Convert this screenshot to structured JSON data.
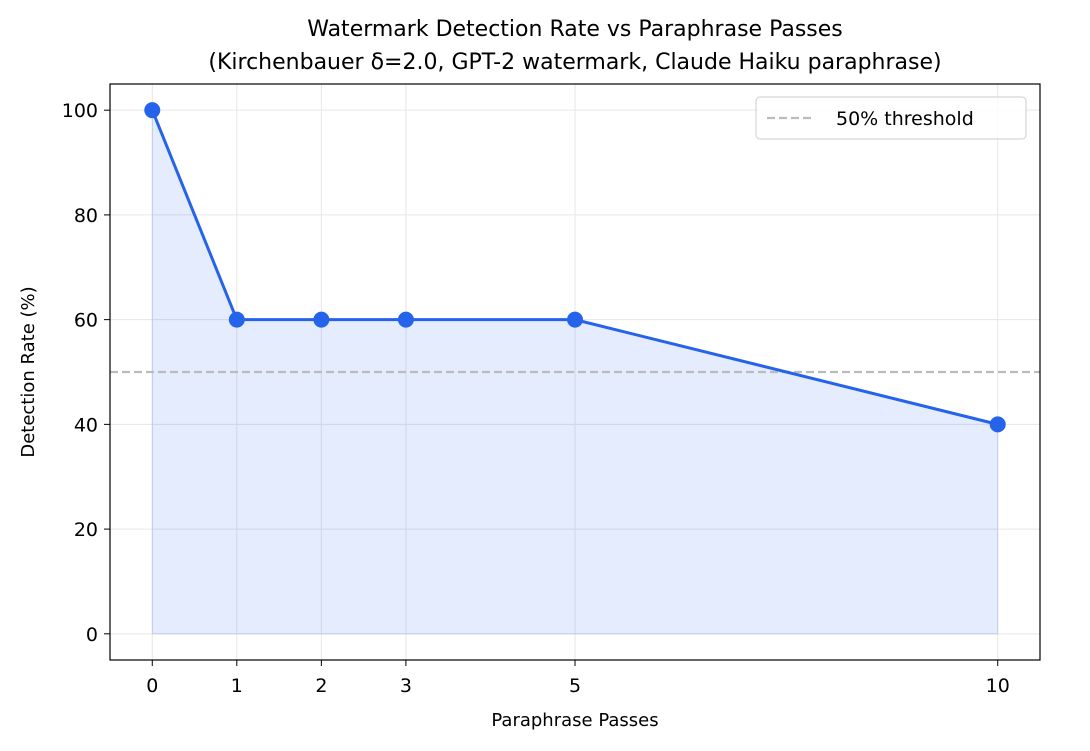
{
  "chart_data": {
    "type": "line",
    "title": "Watermark Detection Rate vs Paraphrase Passes",
    "subtitle": "(Kirchenbauer δ=2.0, GPT-2 watermark, Claude Haiku paraphrase)",
    "xlabel": "Paraphrase Passes",
    "ylabel": "Detection Rate (%)",
    "x": [
      0,
      1,
      2,
      3,
      5,
      10
    ],
    "series": [
      {
        "values": [
          100,
          60,
          60,
          60,
          60,
          40
        ],
        "color": "#2563eb",
        "fill": true
      }
    ],
    "xlim": [
      -0.5,
      10.5
    ],
    "ylim": [
      -5,
      105
    ],
    "xticks": [
      "0",
      "1",
      "2",
      "3",
      "5",
      "10"
    ],
    "yticks": [
      "0",
      "20",
      "40",
      "60",
      "80",
      "100"
    ],
    "grid": true,
    "threshold": {
      "value": 50,
      "label": "50% threshold",
      "color": "#bbbbbb",
      "style": "dashed"
    },
    "legend_position": "top-right"
  }
}
